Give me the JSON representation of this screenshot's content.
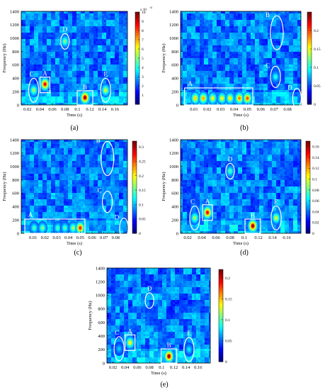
{
  "chart_data": [
    {
      "type": "heatmap",
      "panel_label": "(a)",
      "xlabel": "Time (s)",
      "ylabel": "Frequency (Hz)",
      "xlim": [
        0.01,
        0.18
      ],
      "ylim": [
        0,
        1400
      ],
      "xticks": [
        "0.02",
        "0.04",
        "0.06",
        "0.08",
        "0.1",
        "0.12",
        "0.14",
        "0.16"
      ],
      "yticks": [
        "0",
        "200",
        "400",
        "600",
        "800",
        "1000",
        "1200",
        "1400"
      ],
      "colorbar": {
        "min": 0,
        "max": 10,
        "ticks": [
          "1",
          "2",
          "3",
          "4",
          "5",
          "6",
          "7",
          "8",
          "9",
          "10"
        ],
        "multiplier": "x 10",
        "exponent": "-4"
      },
      "annotations": [
        {
          "label": "C",
          "shape": "ellipse",
          "x": 0.03,
          "y": 220
        },
        {
          "label": "A",
          "shape": "rect",
          "x": 0.048,
          "y": 300
        },
        {
          "label": "D",
          "shape": "ellipse",
          "x": 0.08,
          "y": 950
        },
        {
          "label": "B",
          "shape": "rect",
          "x": 0.112,
          "y": 110
        },
        {
          "label": "E",
          "shape": "ellipse",
          "x": 0.145,
          "y": 220
        }
      ],
      "hotspots": [
        {
          "x": 0.048,
          "y": 310,
          "intensity": 0.85
        },
        {
          "x": 0.112,
          "y": 110,
          "intensity": 0.95
        },
        {
          "x": 0.03,
          "y": 220,
          "intensity": 0.45
        },
        {
          "x": 0.145,
          "y": 220,
          "intensity": 0.5
        },
        {
          "x": 0.08,
          "y": 950,
          "intensity": 0.4
        }
      ]
    },
    {
      "type": "heatmap",
      "panel_label": "(b)",
      "xlabel": "Time (s)",
      "ylabel": "Frequency (Hz)",
      "xlim": [
        0.0,
        0.09
      ],
      "ylim": [
        0,
        1400
      ],
      "xticks": [
        "0.01",
        "0.02",
        "0.03",
        "0.04",
        "0.05",
        "0.06",
        "0.07",
        "0.08"
      ],
      "yticks": [
        "0",
        "200",
        "400",
        "600",
        "800",
        "1000",
        "1200",
        "1400"
      ],
      "colorbar": {
        "min": 0,
        "max": 0.25,
        "ticks": [
          "0",
          "0.05",
          "0.1",
          "0.15",
          "0.2"
        ]
      },
      "annotations": [
        {
          "label": "A",
          "shape": "rect",
          "x": 0.028,
          "y": 130
        },
        {
          "label": "B",
          "shape": "ellipse",
          "x": 0.072,
          "y": 1080
        },
        {
          "label": "C",
          "shape": "ellipse",
          "x": 0.071,
          "y": 420
        },
        {
          "label": "D",
          "shape": "ellipse",
          "x": 0.087,
          "y": 100
        }
      ],
      "hotspots": [
        {
          "x": 0.011,
          "y": 100,
          "intensity": 0.6
        },
        {
          "x": 0.017,
          "y": 100,
          "intensity": 0.65
        },
        {
          "x": 0.024,
          "y": 100,
          "intensity": 0.55
        },
        {
          "x": 0.031,
          "y": 100,
          "intensity": 0.55
        },
        {
          "x": 0.037,
          "y": 100,
          "intensity": 0.55
        },
        {
          "x": 0.044,
          "y": 100,
          "intensity": 0.7
        },
        {
          "x": 0.05,
          "y": 100,
          "intensity": 0.75
        },
        {
          "x": 0.071,
          "y": 420,
          "intensity": 0.3
        }
      ]
    },
    {
      "type": "heatmap",
      "panel_label": "(c)",
      "xlabel": "Time (s)",
      "ylabel": "Frequency (Hz)",
      "xlim": [
        0.0,
        0.09
      ],
      "ylim": [
        0,
        1400
      ],
      "xticks": [
        "0.01",
        "0.02",
        "0.03",
        "0.04",
        "0.05",
        "0.06",
        "0.07",
        "0.08"
      ],
      "yticks": [
        "0",
        "200",
        "400",
        "600",
        "800",
        "1000",
        "1200",
        "1400"
      ],
      "colorbar": {
        "min": 0,
        "max": 0.32,
        "ticks": [
          "0",
          "0.05",
          "0.1",
          "0.15",
          "0.2",
          "0.25",
          "0.3"
        ]
      },
      "annotations": [
        {
          "label": "A",
          "shape": "rect",
          "x": 0.028,
          "y": 110
        },
        {
          "label": "B",
          "shape": "ellipse",
          "x": 0.073,
          "y": 1120
        },
        {
          "label": "C",
          "shape": "ellipse",
          "x": 0.073,
          "y": 470
        },
        {
          "label": "D",
          "shape": "ellipse",
          "x": 0.087,
          "y": 80
        }
      ],
      "hotspots": [
        {
          "x": 0.011,
          "y": 80,
          "intensity": 0.35
        },
        {
          "x": 0.018,
          "y": 80,
          "intensity": 0.4
        },
        {
          "x": 0.031,
          "y": 80,
          "intensity": 0.35
        },
        {
          "x": 0.037,
          "y": 80,
          "intensity": 0.35
        },
        {
          "x": 0.044,
          "y": 80,
          "intensity": 0.45
        },
        {
          "x": 0.05,
          "y": 80,
          "intensity": 0.8
        }
      ]
    },
    {
      "type": "heatmap",
      "panel_label": "(d)",
      "xlabel": "Time (s)",
      "ylabel": "Frequency (Hz)",
      "xlim": [
        0.01,
        0.18
      ],
      "ylim": [
        0,
        1400
      ],
      "xticks": [
        "0.02",
        "0.04",
        "0.06",
        "0.08",
        "0.1",
        "0.12",
        "0.14",
        "0.16"
      ],
      "yticks": [
        "0",
        "200",
        "400",
        "600",
        "800",
        "1000",
        "1200",
        "1400"
      ],
      "colorbar": {
        "min": 0,
        "max": 0.17,
        "ticks": [
          "0",
          "0.02",
          "0.04",
          "0.06",
          "0.08",
          "0.1",
          "0.12",
          "0.14",
          "0.16"
        ]
      },
      "annotations": [
        {
          "label": "C",
          "shape": "ellipse",
          "x": 0.03,
          "y": 230
        },
        {
          "label": "A",
          "shape": "rect",
          "x": 0.048,
          "y": 310
        },
        {
          "label": "D",
          "shape": "ellipse",
          "x": 0.08,
          "y": 930
        },
        {
          "label": "B",
          "shape": "rect",
          "x": 0.112,
          "y": 110
        },
        {
          "label": "E",
          "shape": "ellipse",
          "x": 0.145,
          "y": 230
        }
      ],
      "hotspots": [
        {
          "x": 0.048,
          "y": 310,
          "intensity": 0.85
        },
        {
          "x": 0.112,
          "y": 110,
          "intensity": 0.95
        },
        {
          "x": 0.03,
          "y": 230,
          "intensity": 0.45
        },
        {
          "x": 0.145,
          "y": 230,
          "intensity": 0.5
        },
        {
          "x": 0.08,
          "y": 930,
          "intensity": 0.35
        }
      ]
    },
    {
      "type": "heatmap",
      "panel_label": "(e)",
      "xlabel": "Time (s)",
      "ylabel": "Frequency (Hz)",
      "xlim": [
        0.01,
        0.18
      ],
      "ylim": [
        0,
        1400
      ],
      "xticks": [
        "0.02",
        "0.04",
        "0.06",
        "0.08",
        "0.1",
        "0.12",
        "0.14",
        "0.16"
      ],
      "yticks": [
        "0",
        "200",
        "400",
        "600",
        "800",
        "1000",
        "1200",
        "1400"
      ],
      "colorbar": {
        "min": 0,
        "max": 0.22,
        "ticks": [
          "0",
          "0.05",
          "0.1",
          "0.15",
          "0.2"
        ]
      },
      "annotations": [
        {
          "label": "C",
          "shape": "ellipse",
          "x": 0.03,
          "y": 210
        },
        {
          "label": "A",
          "shape": "rect",
          "x": 0.048,
          "y": 300
        },
        {
          "label": "D",
          "shape": "ellipse",
          "x": 0.08,
          "y": 920
        },
        {
          "label": "B",
          "shape": "rect",
          "x": 0.112,
          "y": 100
        },
        {
          "label": "E",
          "shape": "ellipse",
          "x": 0.145,
          "y": 200
        }
      ],
      "hotspots": [
        {
          "x": 0.048,
          "y": 300,
          "intensity": 0.55
        },
        {
          "x": 0.112,
          "y": 100,
          "intensity": 0.95
        },
        {
          "x": 0.03,
          "y": 210,
          "intensity": 0.2
        },
        {
          "x": 0.145,
          "y": 200,
          "intensity": 0.25
        }
      ]
    }
  ]
}
